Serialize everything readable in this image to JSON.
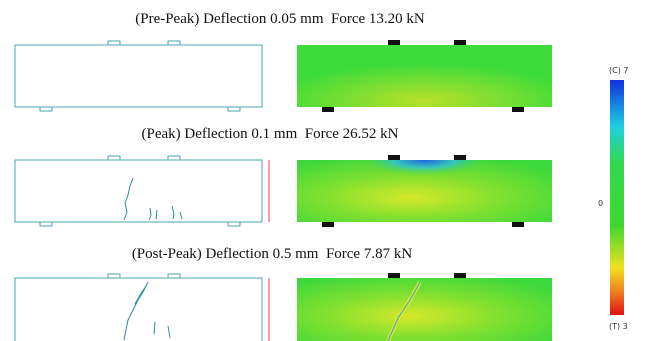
{
  "panels": [
    {
      "title": "(Pre-Peak) Deflection 0.05 mm  Force 13.20 kN"
    },
    {
      "title": "(Peak) Deflection 0.1 mm  Force 26.52 kN"
    },
    {
      "title": "(Post-Peak) Deflection 0.5 mm  Force 7.87 kN"
    }
  ],
  "colorbar": {
    "top_label": "(C) 7",
    "middle_label": "0",
    "bottom_label": "(T) 3"
  }
}
